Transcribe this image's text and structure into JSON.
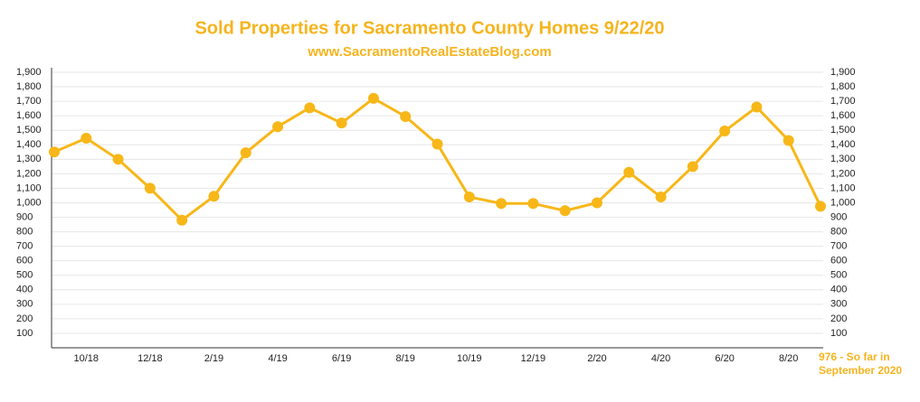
{
  "chart_data": {
    "type": "line",
    "title": "Sold Properties for Sacramento County Homes 9/22/20",
    "subtitle": "www.SacramentoRealEstateBlog.com",
    "annotation": [
      "976 - So far in",
      "September 2020"
    ],
    "categories": [
      null,
      "10/18",
      null,
      "12/18",
      null,
      "2/19",
      null,
      "4/19",
      null,
      "6/19",
      null,
      "8/19",
      null,
      "10/19",
      null,
      "12/19",
      null,
      "2/20",
      null,
      "4/20",
      null,
      "6/20",
      null,
      "8/20",
      null
    ],
    "series": [
      {
        "name": "Sold Properties",
        "color": "#f7b718",
        "values": [
          1350,
          1445,
          1300,
          1100,
          880,
          1045,
          1345,
          1525,
          1655,
          1550,
          1720,
          1595,
          1405,
          1040,
          995,
          995,
          945,
          1000,
          1210,
          1040,
          1250,
          1495,
          1660,
          1430,
          976
        ]
      }
    ],
    "ylim": [
      0,
      1900
    ],
    "yticks": [
      100,
      200,
      300,
      400,
      500,
      600,
      700,
      800,
      900,
      {
        "value": 1000,
        "label": "1,000"
      },
      {
        "value": 1100,
        "label": "1,100"
      },
      {
        "value": 1200,
        "label": "1,200"
      },
      {
        "value": 1300,
        "label": "1,300"
      },
      {
        "value": 1400,
        "label": "1,400"
      },
      {
        "value": 1500,
        "label": "1,500"
      },
      {
        "value": 1600,
        "label": "1,600"
      },
      {
        "value": 1700,
        "label": "1,700"
      },
      {
        "value": 1800,
        "label": "1,800"
      },
      {
        "value": 1900,
        "label": "1,900"
      }
    ],
    "grid": true
  }
}
